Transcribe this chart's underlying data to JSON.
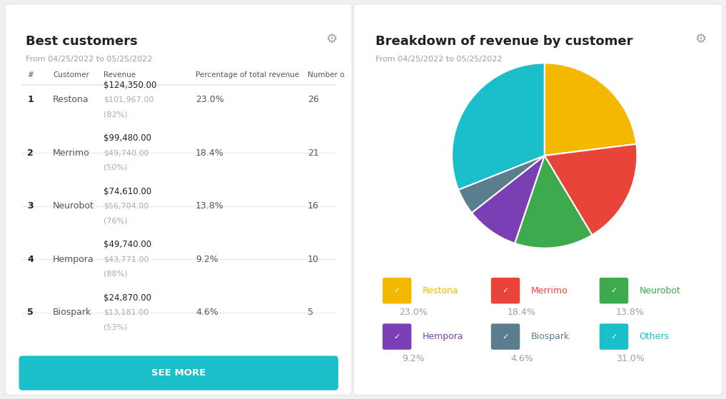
{
  "left_title": "Best customers",
  "left_subtitle": "From 04/25/2022 to 05/25/2022",
  "right_title": "Breakdown of revenue by customer",
  "right_subtitle": "From 04/25/2022 to 05/25/2022",
  "table_headers": [
    "#",
    "Customer",
    "Revenue",
    "Percentage of total revenue",
    "Number o"
  ],
  "table_rows": [
    {
      "rank": "1",
      "customer": "Restona",
      "revenue1": "$124,350.00",
      "revenue2": "$101,967.00",
      "revenue3": "(82%)",
      "pct": "23.0%",
      "num": "26"
    },
    {
      "rank": "2",
      "customer": "Merrimo",
      "revenue1": "$99,480.00",
      "revenue2": "$49,740.00",
      "revenue3": "(50%)",
      "pct": "18.4%",
      "num": "21"
    },
    {
      "rank": "3",
      "customer": "Neurobot",
      "revenue1": "$74,610.00",
      "revenue2": "$56,704.00",
      "revenue3": "(76%)",
      "pct": "13.8%",
      "num": "16"
    },
    {
      "rank": "4",
      "customer": "Hempora",
      "revenue1": "$49,740.00",
      "revenue2": "$43,771.00",
      "revenue3": "(88%)",
      "pct": "9.2%",
      "num": "10"
    },
    {
      "rank": "5",
      "customer": "Biospark",
      "revenue1": "$24,870.00",
      "revenue2": "$13,181.00",
      "revenue3": "(53%)",
      "pct": "4.6%",
      "num": "5"
    }
  ],
  "pie_labels": [
    "Restona",
    "Merrimo",
    "Neurobot",
    "Hempora",
    "Biospark",
    "Others"
  ],
  "pie_values": [
    23.0,
    18.4,
    13.8,
    9.2,
    4.6,
    31.0
  ],
  "pie_colors": [
    "#F5B800",
    "#E8443A",
    "#3DAA4E",
    "#7B3FB5",
    "#5A7E8E",
    "#1BBFCA"
  ],
  "legend_colors": [
    "#F5B800",
    "#E8443A",
    "#3DAA4E",
    "#7B3FB5",
    "#5A7E8E",
    "#1BBFCA"
  ],
  "legend_labels": [
    "Restona",
    "Merrimo",
    "Neurobot",
    "Hempora",
    "Biospark",
    "Others"
  ],
  "legend_pcts": [
    "23.0%",
    "18.4%",
    "13.8%",
    "9.2%",
    "4.6%",
    "31.0%"
  ],
  "see_more_color": "#1BBFCA",
  "see_more_text": "SEE MORE",
  "bg_color": "#F0F0F0",
  "panel_bg": "#FFFFFF",
  "gear_color": "#9E9E9E",
  "title_color": "#222222",
  "subtitle_color": "#9E9E9E",
  "header_color": "#555555",
  "rank_color": "#222222",
  "customer_color": "#555555",
  "revenue_main_color": "#222222",
  "revenue_sub_color": "#AAAAAA",
  "pct_color": "#555555",
  "num_color": "#555555",
  "divider_color": "#E8E8E8",
  "scrollbar_color": "#CCCCCC"
}
